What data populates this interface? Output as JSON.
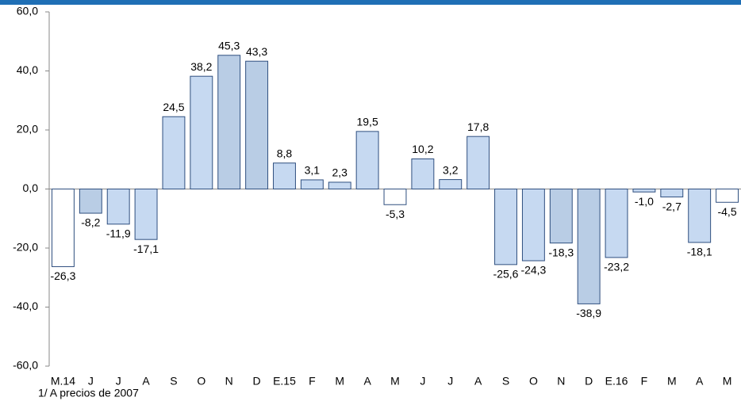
{
  "chart_data": {
    "type": "bar",
    "categories": [
      "M.14",
      "J",
      "J",
      "A",
      "S",
      "O",
      "N",
      "D",
      "E.15",
      "F",
      "M",
      "A",
      "M",
      "J",
      "J",
      "A",
      "S",
      "O",
      "N",
      "D",
      "E.16",
      "F",
      "M",
      "A",
      "M"
    ],
    "values": [
      -26.3,
      -8.2,
      -11.9,
      -17.1,
      24.5,
      38.2,
      45.3,
      43.3,
      8.8,
      3.1,
      2.3,
      19.5,
      -5.3,
      10.2,
      3.2,
      17.8,
      -25.6,
      -24.3,
      -18.3,
      -38.9,
      -23.2,
      -1.0,
      -2.7,
      -18.1,
      -4.5
    ],
    "value_labels": [
      "-26,3",
      "-8,2",
      "-11,9",
      "-17,1",
      "24,5",
      "38,2",
      "45,3",
      "43,3",
      "8,8",
      "3,1",
      "2,3",
      "19,5",
      "-5,3",
      "10,2",
      "3,2",
      "17,8",
      "-25,6",
      "-24,3",
      "-18,3",
      "-38,9",
      "-23,2",
      "-1,0",
      "-2,7",
      "-18,1",
      "-4,5"
    ],
    "colors": [
      "#ffffff",
      "#b9cde5",
      "#c6d9f1",
      "#c6d9f1",
      "#c6d9f1",
      "#c6d9f1",
      "#b9cde5",
      "#b9cde5",
      "#c6d9f1",
      "#c6d9f1",
      "#c6d9f1",
      "#c6d9f1",
      "#ffffff",
      "#c6d9f1",
      "#c6d9f1",
      "#c6d9f1",
      "#c6d9f1",
      "#c6d9f1",
      "#b9cde5",
      "#b9cde5",
      "#c6d9f1",
      "#c6d9f1",
      "#c6d9f1",
      "#c6d9f1",
      "#ffffff"
    ],
    "ylim": [
      -60,
      60
    ],
    "yticks": [
      {
        "value": 60,
        "label": "60,0"
      },
      {
        "value": 40,
        "label": "40,0"
      },
      {
        "value": 20,
        "label": "20,0"
      },
      {
        "value": 0,
        "label": "0,0"
      },
      {
        "value": -20,
        "label": "-20,0"
      },
      {
        "value": -40,
        "label": "-40,0"
      },
      {
        "value": -60,
        "label": "-60,0"
      }
    ],
    "footnote": "1/ A precios de 2007"
  }
}
